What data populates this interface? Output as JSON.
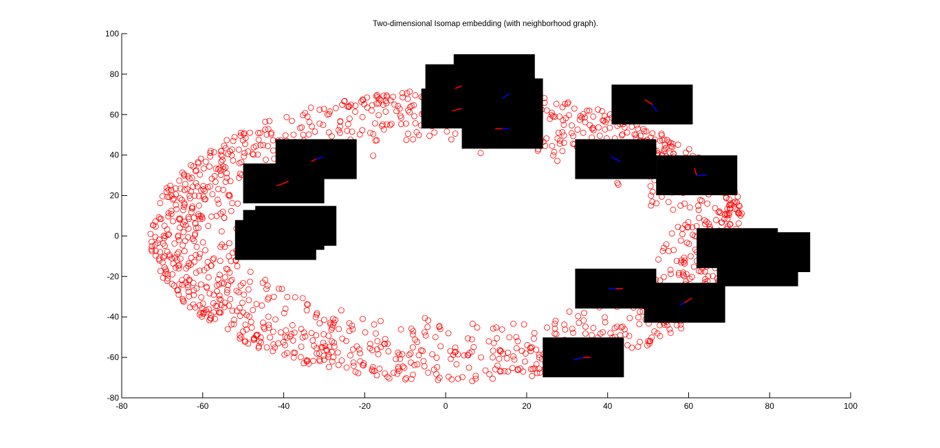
{
  "chart_data": {
    "type": "scatter",
    "title": "Two-dimensional Isomap embedding (with neighborhood graph).",
    "xlabel": "",
    "ylabel": "",
    "xlim": [
      -80,
      100
    ],
    "ylim": [
      -80,
      100
    ],
    "xticks": [
      -80,
      -60,
      -40,
      -20,
      0,
      20,
      40,
      60,
      80,
      100
    ],
    "yticks": [
      -80,
      -60,
      -40,
      -20,
      0,
      20,
      40,
      60,
      80,
      100
    ],
    "grid": false,
    "legend": "none",
    "marker": "circle-open",
    "marker_color": "#ff0000",
    "ring": {
      "center": [
        1,
        0
      ],
      "inner_radii": [
        52,
        40
      ],
      "outer_radii": [
        74,
        72
      ],
      "point_count": 1600
    },
    "image_thumbnails": [
      {
        "x": 12,
        "y": 80,
        "lines": [
          [
            -5,
            0,
            "#ff0000"
          ],
          [
            3,
            -4,
            "#0000ff"
          ]
        ]
      },
      {
        "x": 5,
        "y": 75,
        "lines": [
          [
            -5,
            -2,
            "#ff0000"
          ],
          [
            4,
            -3,
            "#0000ff"
          ]
        ]
      },
      {
        "x": 14,
        "y": 68,
        "lines": [
          [
            -3,
            -1,
            "#ff0000"
          ],
          [
            3,
            2,
            "#0000ff"
          ]
        ]
      },
      {
        "x": 4,
        "y": 63,
        "lines": [
          [
            -4,
            -1,
            "#ff0000"
          ],
          [
            3,
            -3,
            "#0000ff"
          ]
        ]
      },
      {
        "x": 14,
        "y": 53,
        "lines": [
          [
            -3,
            0,
            "#ff0000"
          ],
          [
            3,
            0,
            "#0000ff"
          ]
        ]
      },
      {
        "x": 51,
        "y": 65,
        "lines": [
          [
            -3,
            2,
            "#ff0000"
          ],
          [
            2,
            -3,
            "#0000ff"
          ]
        ]
      },
      {
        "x": -32,
        "y": 38,
        "lines": [
          [
            -2,
            -1,
            "#ff0000"
          ],
          [
            3,
            1,
            "#0000ff"
          ]
        ]
      },
      {
        "x": -40,
        "y": 26,
        "lines": [
          [
            -3,
            -1,
            "#ff0000"
          ],
          [
            2,
            1,
            "#ff0000"
          ]
        ]
      },
      {
        "x": 42,
        "y": 38,
        "lines": [
          [
            -2,
            1,
            "#0000ff"
          ],
          [
            2,
            -1,
            "#0000ff"
          ]
        ]
      },
      {
        "x": 62,
        "y": 30,
        "lines": [
          [
            -1,
            3,
            "#ff0000"
          ],
          [
            4,
            0,
            "#0000ff"
          ]
        ]
      },
      {
        "x": -37,
        "y": 5,
        "lines": [
          [
            -2,
            1,
            "#ff0000"
          ],
          [
            1,
            -2,
            "#0000ff"
          ]
        ]
      },
      {
        "x": -40,
        "y": 3,
        "lines": [
          [
            -2,
            0,
            "#0000ff"
          ],
          [
            2,
            1,
            "#ff0000"
          ]
        ]
      },
      {
        "x": -42,
        "y": -2,
        "lines": [
          [
            0,
            0,
            "#000000"
          ]
        ]
      },
      {
        "x": 72,
        "y": -6,
        "lines": [
          [
            1,
            3,
            "#ff0000"
          ],
          [
            1,
            -3,
            "#0000ff"
          ]
        ]
      },
      {
        "x": 77,
        "y": -15,
        "lines": [
          [
            -2,
            -2,
            "#0000ff"
          ],
          [
            2,
            2,
            "#ff0000"
          ]
        ]
      },
      {
        "x": 80,
        "y": -8,
        "lines": [
          [
            0,
            0,
            "#000000"
          ]
        ]
      },
      {
        "x": 42,
        "y": -26,
        "lines": [
          [
            -3,
            0,
            "#0000ff"
          ],
          [
            3,
            0,
            "#ff0000"
          ]
        ]
      },
      {
        "x": 59,
        "y": -33,
        "lines": [
          [
            -2,
            -1,
            "#0000ff"
          ],
          [
            3,
            2,
            "#ff0000"
          ]
        ]
      },
      {
        "x": 34,
        "y": -60,
        "lines": [
          [
            -4,
            -1,
            "#0000ff"
          ],
          [
            3,
            0,
            "#ff0000"
          ]
        ]
      }
    ]
  }
}
